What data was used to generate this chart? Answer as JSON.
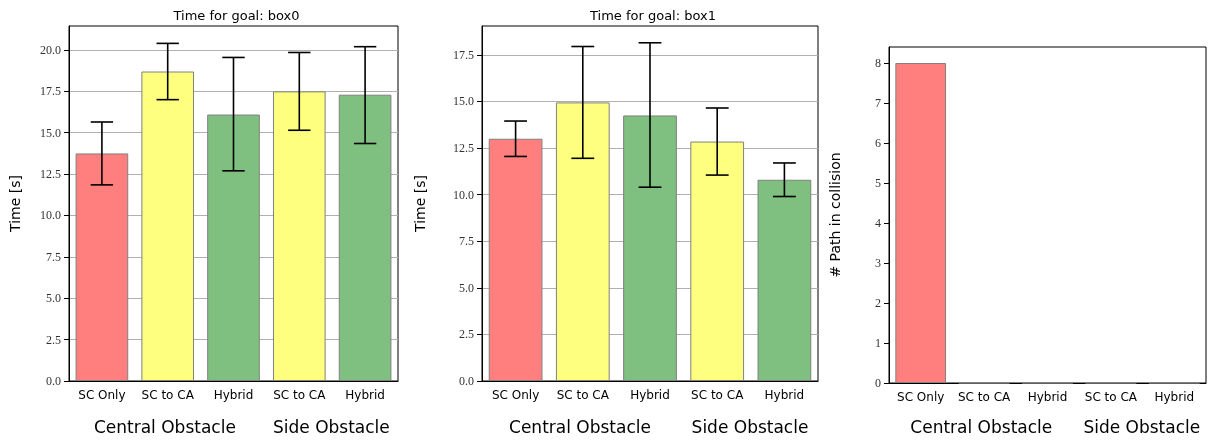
{
  "chart_data": [
    {
      "type": "bar",
      "title": "Time for goal: box0",
      "ylabel": "Time [s]",
      "categories": [
        "SC Only",
        "SC to CA",
        "Hybrid",
        "SC to CA",
        "Hybrid"
      ],
      "values": [
        13.75,
        18.7,
        16.1,
        17.5,
        17.3
      ],
      "colors": [
        "#ff7f7f",
        "#ffff7f",
        "#7fbf7f",
        "#ffff7f",
        "#7fbf7f"
      ],
      "errors": [
        [
          11.85,
          15.65
        ],
        [
          17.0,
          20.4
        ],
        [
          12.7,
          19.55
        ],
        [
          15.15,
          19.85
        ],
        [
          14.35,
          20.2
        ]
      ],
      "ylim": [
        0,
        21.45
      ],
      "yticks": [
        {
          "value": 0,
          "label": "0.0"
        },
        {
          "value": 2.5,
          "label": "2.5"
        },
        {
          "value": 5,
          "label": "5.0"
        },
        {
          "value": 7.5,
          "label": "7.5"
        },
        {
          "value": 10,
          "label": "10.0"
        },
        {
          "value": 12.5,
          "label": "12.5"
        },
        {
          "value": 15,
          "label": "15.0"
        },
        {
          "value": 17.5,
          "label": "17.5"
        },
        {
          "value": 20,
          "label": "20.0"
        }
      ],
      "grid": "y",
      "annotations": [
        "Central Obstacle",
        "Side Obstacle"
      ]
    },
    {
      "type": "bar",
      "title": "Time for goal: box1",
      "ylabel": "Time [s]",
      "categories": [
        "SC Only",
        "SC to CA",
        "Hybrid",
        "SC to CA",
        "Hybrid"
      ],
      "values": [
        13.0,
        14.95,
        14.25,
        12.85,
        10.8
      ],
      "colors": [
        "#ff7f7f",
        "#ffff7f",
        "#7fbf7f",
        "#ffff7f",
        "#7fbf7f"
      ],
      "errors": [
        [
          12.05,
          13.95
        ],
        [
          11.95,
          17.95
        ],
        [
          10.4,
          18.15
        ],
        [
          11.05,
          14.65
        ],
        [
          9.9,
          11.7
        ]
      ],
      "ylim": [
        0,
        19.05
      ],
      "yticks": [
        {
          "value": 0,
          "label": "0.0"
        },
        {
          "value": 2.5,
          "label": "2.5"
        },
        {
          "value": 5,
          "label": "5.0"
        },
        {
          "value": 7.5,
          "label": "7.5"
        },
        {
          "value": 10,
          "label": "10.0"
        },
        {
          "value": 12.5,
          "label": "12.5"
        },
        {
          "value": 15,
          "label": "15.0"
        },
        {
          "value": 17.5,
          "label": "17.5"
        }
      ],
      "grid": "y",
      "annotations": [
        "Central Obstacle",
        "Side Obstacle"
      ]
    },
    {
      "type": "bar",
      "ylabel": "# Path in collision",
      "categories": [
        "SC Only",
        "SC to CA",
        "Hybrid",
        "SC to CA",
        "Hybrid"
      ],
      "values": [
        8,
        0,
        0,
        0,
        0
      ],
      "colors": [
        "#ff7f7f",
        "#808080",
        "#808080",
        "#808080",
        "#808080"
      ],
      "ylim": [
        0,
        8.4
      ],
      "yticks": [
        0,
        1,
        2,
        3,
        4,
        5,
        6,
        7,
        8
      ],
      "annotations": [
        "Central Obstacle",
        "Side Obstacle"
      ]
    }
  ]
}
